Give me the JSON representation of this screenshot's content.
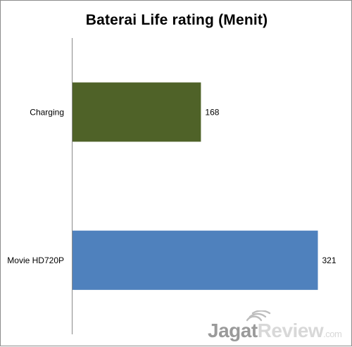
{
  "chart_data": {
    "type": "bar",
    "orientation": "horizontal",
    "title": "Baterai Life rating (Menit)",
    "categories": [
      "Charging",
      "Movie HD720P"
    ],
    "values": [
      168,
      321
    ],
    "data_labels": [
      "168",
      "321"
    ],
    "bar_colors": [
      "#4f6228",
      "#4f81bd"
    ],
    "xlim": [
      0,
      350
    ],
    "grid": false,
    "legend": "none",
    "xlabel": "",
    "ylabel": ""
  },
  "watermark": {
    "text_dark": "Jagat",
    "text_light": "Review",
    "suffix": ".com",
    "dark_color": "#9a9a9a",
    "light_color": "#d8d8d8"
  }
}
